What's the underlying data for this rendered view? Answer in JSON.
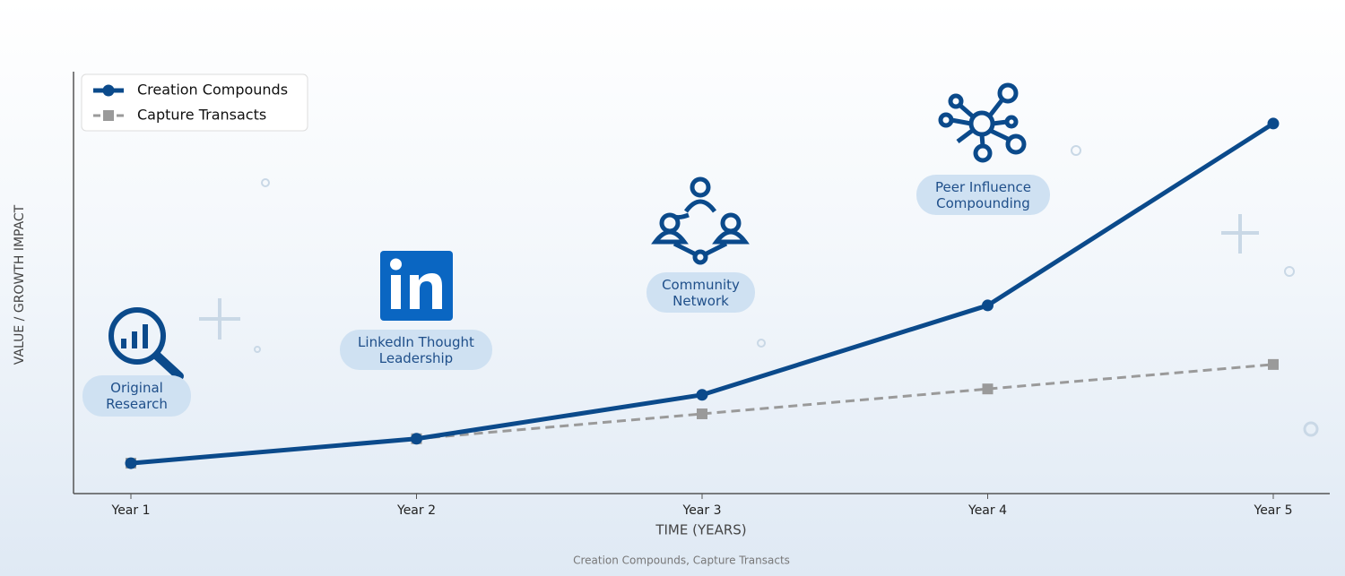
{
  "chart_data": {
    "type": "line",
    "x_label": "TIME (YEARS)",
    "y_label": "VALUE / GROWTH IMPACT",
    "caption": "Creation Compounds, Capture Transacts",
    "categories": [
      "Year 1",
      "Year 2",
      "Year 3",
      "Year 4",
      "Year 5"
    ],
    "ylim": [
      0,
      100
    ],
    "legend": "upper left",
    "series": [
      {
        "name": "Creation Compounds",
        "color": "#0b4a8b",
        "style": "solid",
        "marker": "circle",
        "values": [
          7.2,
          13,
          23.4,
          44.6,
          87.7
        ]
      },
      {
        "name": "Capture Transacts",
        "color": "#9a9a9a",
        "style": "dashed",
        "marker": "square",
        "values": [
          7.2,
          13,
          18.9,
          24.8,
          30.6
        ]
      }
    ],
    "annotations": [
      {
        "text": "Original Research"
      },
      {
        "text": "LinkedIn Thought Leadership"
      },
      {
        "text": "Community Network"
      },
      {
        "text": "Peer Influence Compounding"
      }
    ]
  }
}
